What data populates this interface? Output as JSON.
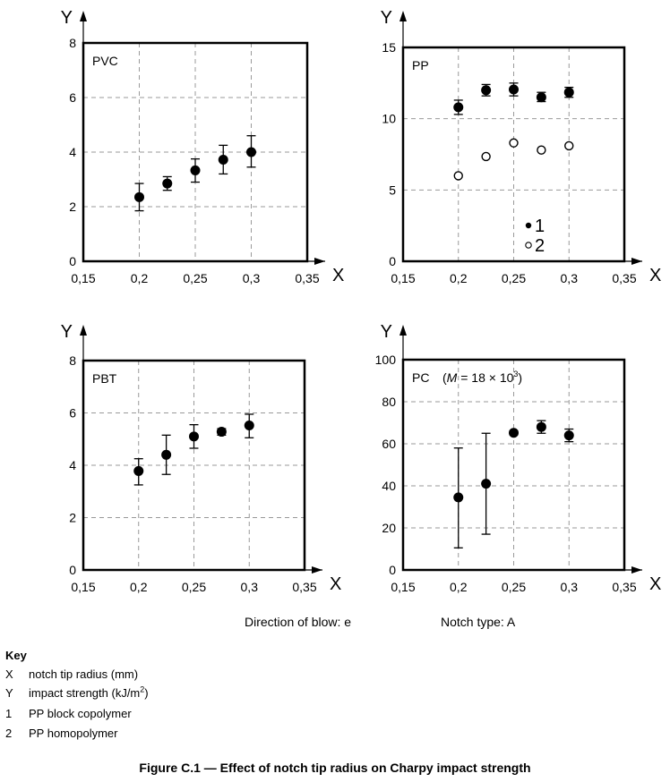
{
  "chart_data": [
    {
      "type": "scatter",
      "title": "PVC",
      "xlabel": "X",
      "ylabel": "Y",
      "xlim": [
        0.15,
        0.35
      ],
      "ylim": [
        0,
        8
      ],
      "x_ticks": [
        "0,15",
        "0,2",
        "0,25",
        "0,3",
        "0,35"
      ],
      "y_ticks": [
        "0",
        "2",
        "4",
        "6",
        "8"
      ],
      "series": [
        {
          "name": "PVC",
          "marker": "filled",
          "points": [
            {
              "x": 0.2,
              "y": 2.35,
              "low": 1.85,
              "high": 2.85
            },
            {
              "x": 0.225,
              "y": 2.85,
              "low": 2.6,
              "high": 3.1
            },
            {
              "x": 0.25,
              "y": 3.33,
              "low": 2.9,
              "high": 3.75
            },
            {
              "x": 0.275,
              "y": 3.72,
              "low": 3.2,
              "high": 4.25
            },
            {
              "x": 0.3,
              "y": 4.0,
              "low": 3.45,
              "high": 4.6
            }
          ]
        }
      ]
    },
    {
      "type": "scatter",
      "title": "PP",
      "xlabel": "X",
      "ylabel": "Y",
      "xlim": [
        0.15,
        0.35
      ],
      "ylim": [
        0,
        15
      ],
      "x_ticks": [
        "0,15",
        "0,2",
        "0,25",
        "0,3",
        "0,35"
      ],
      "y_ticks": [
        "0",
        "5",
        "10",
        "15"
      ],
      "legend": [
        {
          "marker": "filled",
          "label": "1"
        },
        {
          "marker": "open",
          "label": "2"
        }
      ],
      "series": [
        {
          "name": "1",
          "marker": "filled",
          "points": [
            {
              "x": 0.2,
              "y": 10.8,
              "low": 10.3,
              "high": 11.3
            },
            {
              "x": 0.225,
              "y": 12.0,
              "low": 11.6,
              "high": 12.4
            },
            {
              "x": 0.25,
              "y": 12.05,
              "low": 11.6,
              "high": 12.5
            },
            {
              "x": 0.275,
              "y": 11.5,
              "low": 11.2,
              "high": 11.85
            },
            {
              "x": 0.3,
              "y": 11.85,
              "low": 11.5,
              "high": 12.2
            }
          ]
        },
        {
          "name": "2",
          "marker": "open",
          "points": [
            {
              "x": 0.2,
              "y": 6.0
            },
            {
              "x": 0.225,
              "y": 7.35
            },
            {
              "x": 0.25,
              "y": 8.3
            },
            {
              "x": 0.275,
              "y": 7.8
            },
            {
              "x": 0.3,
              "y": 8.1
            }
          ]
        }
      ]
    },
    {
      "type": "scatter",
      "title": "PBT",
      "xlabel": "X",
      "ylabel": "Y",
      "xlim": [
        0.15,
        0.35
      ],
      "ylim": [
        0,
        8
      ],
      "x_ticks": [
        "0,15",
        "0,2",
        "0,25",
        "0,3",
        "0,35"
      ],
      "y_ticks": [
        "0",
        "2",
        "4",
        "6",
        "8"
      ],
      "series": [
        {
          "name": "PBT",
          "marker": "filled",
          "points": [
            {
              "x": 0.2,
              "y": 3.78,
              "low": 3.25,
              "high": 4.25
            },
            {
              "x": 0.225,
              "y": 4.4,
              "low": 3.65,
              "high": 5.15
            },
            {
              "x": 0.25,
              "y": 5.1,
              "low": 4.65,
              "high": 5.55
            },
            {
              "x": 0.275,
              "y": 5.28,
              "low": 5.15,
              "high": 5.4
            },
            {
              "x": 0.3,
              "y": 5.52,
              "low": 5.05,
              "high": 5.95
            }
          ]
        }
      ]
    },
    {
      "type": "scatter",
      "title": "PC",
      "title_parts": {
        "var": "M",
        "rest": " = 18 × 10",
        "sup": "3",
        "close": ")"
      },
      "xlabel": "X",
      "ylabel": "Y",
      "xlim": [
        0.15,
        0.35
      ],
      "ylim": [
        0,
        100
      ],
      "x_ticks": [
        "0,15",
        "0,2",
        "0,25",
        "0,3",
        "0,35"
      ],
      "y_ticks": [
        "0",
        "20",
        "40",
        "60",
        "80",
        "100"
      ],
      "series": [
        {
          "name": "PC",
          "marker": "filled",
          "points": [
            {
              "x": 0.2,
              "y": 34.5,
              "low": 10.5,
              "high": 58
            },
            {
              "x": 0.225,
              "y": 41,
              "low": 17,
              "high": 65
            },
            {
              "x": 0.25,
              "y": 65.2,
              "low": 64.3,
              "high": 66.2
            },
            {
              "x": 0.275,
              "y": 68,
              "low": 65,
              "high": 71
            },
            {
              "x": 0.3,
              "y": 64,
              "low": 61,
              "high": 67
            }
          ]
        }
      ]
    }
  ],
  "captions": {
    "blow": "Direction of blow: e",
    "notch": "Notch type: A"
  },
  "key": {
    "title": "Key",
    "rows": [
      {
        "code": "X",
        "text": "notch tip radius (mm)"
      },
      {
        "code": "Y",
        "text": "impact strength (kJ/m",
        "sup": "2",
        "tail": ")"
      },
      {
        "code": "1",
        "text": "PP block copolymer"
      },
      {
        "code": "2",
        "text": "PP homopolymer"
      }
    ]
  },
  "figure_title": "Figure C.1 — Effect of notch tip radius on Charpy impact strength",
  "colors": {
    "ink": "#000000",
    "grid": "#999999"
  }
}
